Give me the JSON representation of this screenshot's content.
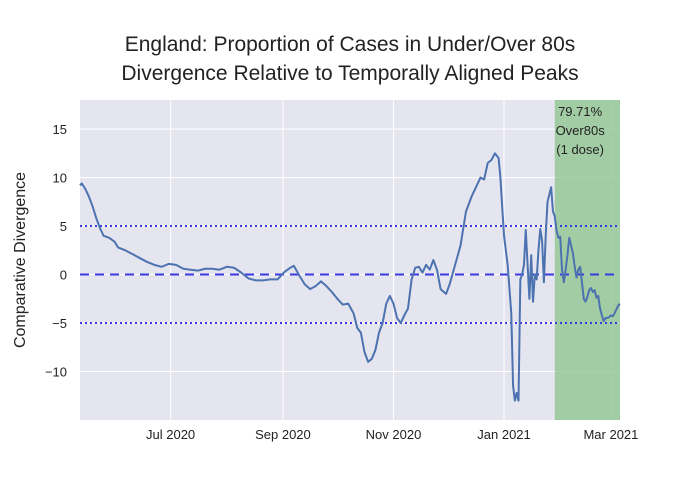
{
  "chart_data": {
    "type": "line",
    "title_lines": [
      "England: Proportion of Cases in Under/Over 80s",
      "Divergence Relative to Temporally Aligned Peaks"
    ],
    "xlabel": "",
    "ylabel": "Comparative Divergence",
    "xlim": [
      "2020-05-12",
      "2021-03-06"
    ],
    "ylim": [
      -15,
      18
    ],
    "grid": true,
    "x_ticks": [
      {
        "date": "2020-07-01",
        "label": "Jul 2020"
      },
      {
        "date": "2020-09-01",
        "label": "Sep 2020"
      },
      {
        "date": "2020-11-01",
        "label": "Nov 2020"
      },
      {
        "date": "2021-01-01",
        "label": "Jan 2021"
      },
      {
        "date": "2021-03-01",
        "label": "Mar 2021"
      }
    ],
    "y_ticks": [
      {
        "value": 15,
        "label": "15"
      },
      {
        "value": 10,
        "label": "10"
      },
      {
        "value": 5,
        "label": "5"
      },
      {
        "value": 0,
        "label": "0"
      },
      {
        "value": -5,
        "label": "−5"
      },
      {
        "value": -10,
        "label": "−10"
      }
    ],
    "reference_lines": [
      {
        "value": 5,
        "style": "dotted"
      },
      {
        "value": 0,
        "style": "dashed"
      },
      {
        "value": -5,
        "style": "dotted"
      }
    ],
    "shaded_region": {
      "x0": "2021-01-29",
      "x1": "2021-03-06",
      "color": "#8bc38b"
    },
    "annotation": {
      "lines": [
        "79.71%",
        "Over80s",
        "(1 dose)"
      ],
      "x": "2021-02-12"
    },
    "colors": {
      "line": "#4c72b0",
      "ref_line": "#3a3ae0",
      "plot_bg": "#e5e5f0",
      "grid": "#ffffff"
    },
    "series": [
      {
        "points": [
          [
            "2020-05-12",
            9.2
          ],
          [
            "2020-05-13",
            9.4
          ],
          [
            "2020-05-15",
            8.8
          ],
          [
            "2020-05-17",
            8.0
          ],
          [
            "2020-05-19",
            7.0
          ],
          [
            "2020-05-21",
            5.8
          ],
          [
            "2020-05-23",
            4.8
          ],
          [
            "2020-05-25",
            4.0
          ],
          [
            "2020-05-28",
            3.8
          ],
          [
            "2020-05-31",
            3.4
          ],
          [
            "2020-06-02",
            2.8
          ],
          [
            "2020-06-06",
            2.5
          ],
          [
            "2020-06-10",
            2.1
          ],
          [
            "2020-06-14",
            1.7
          ],
          [
            "2020-06-18",
            1.3
          ],
          [
            "2020-06-22",
            1.0
          ],
          [
            "2020-06-26",
            0.8
          ],
          [
            "2020-06-30",
            1.1
          ],
          [
            "2020-07-04",
            1.0
          ],
          [
            "2020-07-08",
            0.6
          ],
          [
            "2020-07-12",
            0.5
          ],
          [
            "2020-07-16",
            0.4
          ],
          [
            "2020-07-20",
            0.6
          ],
          [
            "2020-07-24",
            0.6
          ],
          [
            "2020-07-28",
            0.5
          ],
          [
            "2020-08-01",
            0.8
          ],
          [
            "2020-08-05",
            0.7
          ],
          [
            "2020-08-09",
            0.2
          ],
          [
            "2020-08-13",
            -0.4
          ],
          [
            "2020-08-17",
            -0.6
          ],
          [
            "2020-08-21",
            -0.6
          ],
          [
            "2020-08-25",
            -0.5
          ],
          [
            "2020-08-29",
            -0.5
          ],
          [
            "2020-09-02",
            0.3
          ],
          [
            "2020-09-05",
            0.7
          ],
          [
            "2020-09-07",
            0.9
          ],
          [
            "2020-09-10",
            -0.1
          ],
          [
            "2020-09-13",
            -1.0
          ],
          [
            "2020-09-16",
            -1.5
          ],
          [
            "2020-09-19",
            -1.2
          ],
          [
            "2020-09-22",
            -0.7
          ],
          [
            "2020-09-25",
            -1.2
          ],
          [
            "2020-09-28",
            -1.8
          ],
          [
            "2020-10-01",
            -2.5
          ],
          [
            "2020-10-04",
            -3.1
          ],
          [
            "2020-10-07",
            -3.0
          ],
          [
            "2020-10-10",
            -4.0
          ],
          [
            "2020-10-12",
            -5.5
          ],
          [
            "2020-10-14",
            -6.0
          ],
          [
            "2020-10-16",
            -8.0
          ],
          [
            "2020-10-18",
            -9.0
          ],
          [
            "2020-10-20",
            -8.7
          ],
          [
            "2020-10-22",
            -7.8
          ],
          [
            "2020-10-24",
            -6.0
          ],
          [
            "2020-10-26",
            -5.0
          ],
          [
            "2020-10-28",
            -3.0
          ],
          [
            "2020-10-30",
            -2.2
          ],
          [
            "2020-11-01",
            -3.0
          ],
          [
            "2020-11-03",
            -4.5
          ],
          [
            "2020-11-05",
            -5.0
          ],
          [
            "2020-11-07",
            -4.2
          ],
          [
            "2020-11-09",
            -3.5
          ],
          [
            "2020-11-11",
            -0.5
          ],
          [
            "2020-11-13",
            0.7
          ],
          [
            "2020-11-15",
            0.8
          ],
          [
            "2020-11-17",
            0.2
          ],
          [
            "2020-11-19",
            1.0
          ],
          [
            "2020-11-21",
            0.5
          ],
          [
            "2020-11-23",
            1.5
          ],
          [
            "2020-11-25",
            0.5
          ],
          [
            "2020-11-27",
            -1.5
          ],
          [
            "2020-11-30",
            -2.0
          ],
          [
            "2020-12-02",
            -1.0
          ],
          [
            "2020-12-05",
            1.0
          ],
          [
            "2020-12-08",
            3.0
          ],
          [
            "2020-12-11",
            6.5
          ],
          [
            "2020-12-14",
            8.0
          ],
          [
            "2020-12-17",
            9.2
          ],
          [
            "2020-12-19",
            10.0
          ],
          [
            "2020-12-21",
            9.8
          ],
          [
            "2020-12-23",
            11.5
          ],
          [
            "2020-12-25",
            11.8
          ],
          [
            "2020-12-27",
            12.5
          ],
          [
            "2020-12-29",
            12.0
          ],
          [
            "2020-12-30",
            10.0
          ],
          [
            "2020-12-31",
            7.0
          ],
          [
            "2021-01-01",
            4.0
          ],
          [
            "2021-01-03",
            1.0
          ],
          [
            "2021-01-05",
            -4.0
          ],
          [
            "2021-01-06",
            -11.5
          ],
          [
            "2021-01-07",
            -13.0
          ],
          [
            "2021-01-08",
            -12.2
          ],
          [
            "2021-01-09",
            -13.0
          ],
          [
            "2021-01-10",
            -0.5
          ],
          [
            "2021-01-11",
            0.0
          ],
          [
            "2021-01-12",
            1.0
          ],
          [
            "2021-01-13",
            4.6
          ],
          [
            "2021-01-14",
            1.0
          ],
          [
            "2021-01-15",
            -2.5
          ],
          [
            "2021-01-16",
            2.0
          ],
          [
            "2021-01-17",
            -2.8
          ],
          [
            "2021-01-18",
            0.0
          ],
          [
            "2021-01-19",
            -0.5
          ],
          [
            "2021-01-20",
            2.5
          ],
          [
            "2021-01-21",
            4.7
          ],
          [
            "2021-01-22",
            3.5
          ],
          [
            "2021-01-23",
            -0.8
          ],
          [
            "2021-01-24",
            4.0
          ],
          [
            "2021-01-25",
            7.5
          ],
          [
            "2021-01-27",
            9.0
          ],
          [
            "2021-01-28",
            6.5
          ],
          [
            "2021-01-29",
            6.0
          ],
          [
            "2021-01-30",
            4.5
          ],
          [
            "2021-01-31",
            3.8
          ],
          [
            "2021-02-01",
            3.9
          ],
          [
            "2021-02-02",
            0.5
          ],
          [
            "2021-02-03",
            -0.8
          ],
          [
            "2021-02-04",
            0.5
          ],
          [
            "2021-02-05",
            2.0
          ],
          [
            "2021-02-06",
            3.8
          ],
          [
            "2021-02-07",
            3.0
          ],
          [
            "2021-02-08",
            2.2
          ],
          [
            "2021-02-09",
            0.8
          ],
          [
            "2021-02-10",
            -0.3
          ],
          [
            "2021-02-11",
            0.5
          ],
          [
            "2021-02-12",
            0.8
          ],
          [
            "2021-02-13",
            -0.8
          ],
          [
            "2021-02-14",
            -2.5
          ],
          [
            "2021-02-15",
            -2.8
          ],
          [
            "2021-02-16",
            -2.3
          ],
          [
            "2021-02-17",
            -1.6
          ],
          [
            "2021-02-18",
            -1.4
          ],
          [
            "2021-02-19",
            -1.8
          ],
          [
            "2021-02-20",
            -1.6
          ],
          [
            "2021-02-21",
            -2.4
          ],
          [
            "2021-02-22",
            -2.2
          ],
          [
            "2021-02-23",
            -3.5
          ],
          [
            "2021-02-24",
            -4.2
          ],
          [
            "2021-02-25",
            -4.8
          ],
          [
            "2021-02-26",
            -4.5
          ],
          [
            "2021-02-28",
            -4.4
          ],
          [
            "2021-03-01",
            -4.2
          ],
          [
            "2021-03-02",
            -4.3
          ],
          [
            "2021-03-03",
            -4.0
          ],
          [
            "2021-03-05",
            -3.2
          ],
          [
            "2021-03-06",
            -3.0
          ]
        ]
      }
    ]
  }
}
